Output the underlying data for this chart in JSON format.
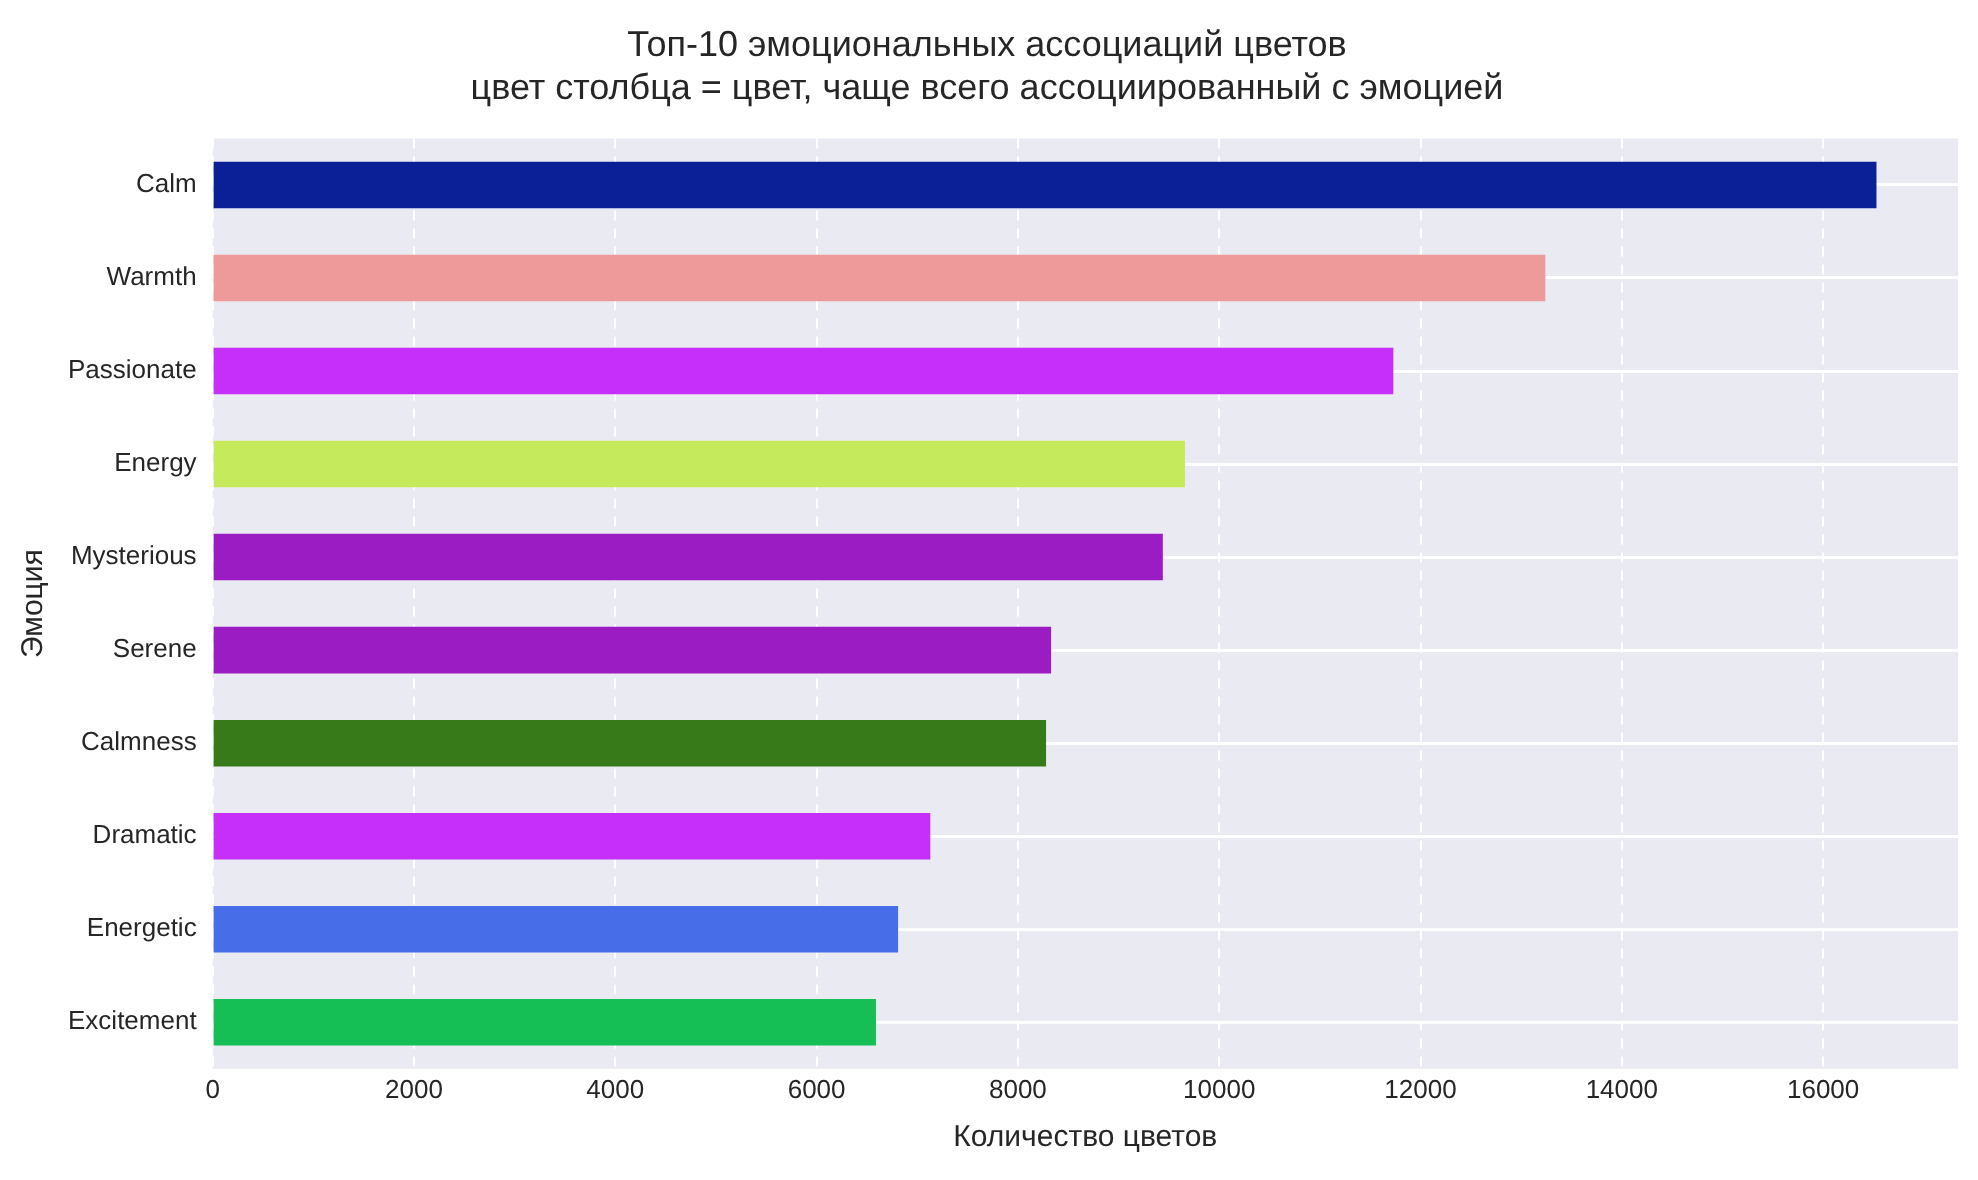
{
  "chart_data": {
    "type": "bar",
    "orientation": "horizontal",
    "title": "Топ-10 эмоциональных ассоциаций цветов",
    "subtitle": "цвет столбца = цвет, чаще всего ассоциированный с эмоцией",
    "xlabel": "Количество цветов",
    "ylabel": "Эмоция",
    "categories": [
      "Calm",
      "Warmth",
      "Passionate",
      "Energy",
      "Mysterious",
      "Serene",
      "Calmness",
      "Dramatic",
      "Energetic",
      "Excitement"
    ],
    "values": [
      16530,
      13240,
      11730,
      9660,
      9440,
      8330,
      8280,
      7130,
      6810,
      6590
    ],
    "colors": [
      "#0b1f96",
      "#ef9a9a",
      "#c62ffa",
      "#c5ea5c",
      "#9c1cc4",
      "#9c1cc4",
      "#377a19",
      "#c62ffa",
      "#476de8",
      "#15bf55"
    ],
    "xlim": [
      0,
      17340
    ],
    "xticks": [
      0,
      2000,
      4000,
      6000,
      8000,
      10000,
      12000,
      14000,
      16000
    ],
    "grid": true,
    "legend": false
  }
}
